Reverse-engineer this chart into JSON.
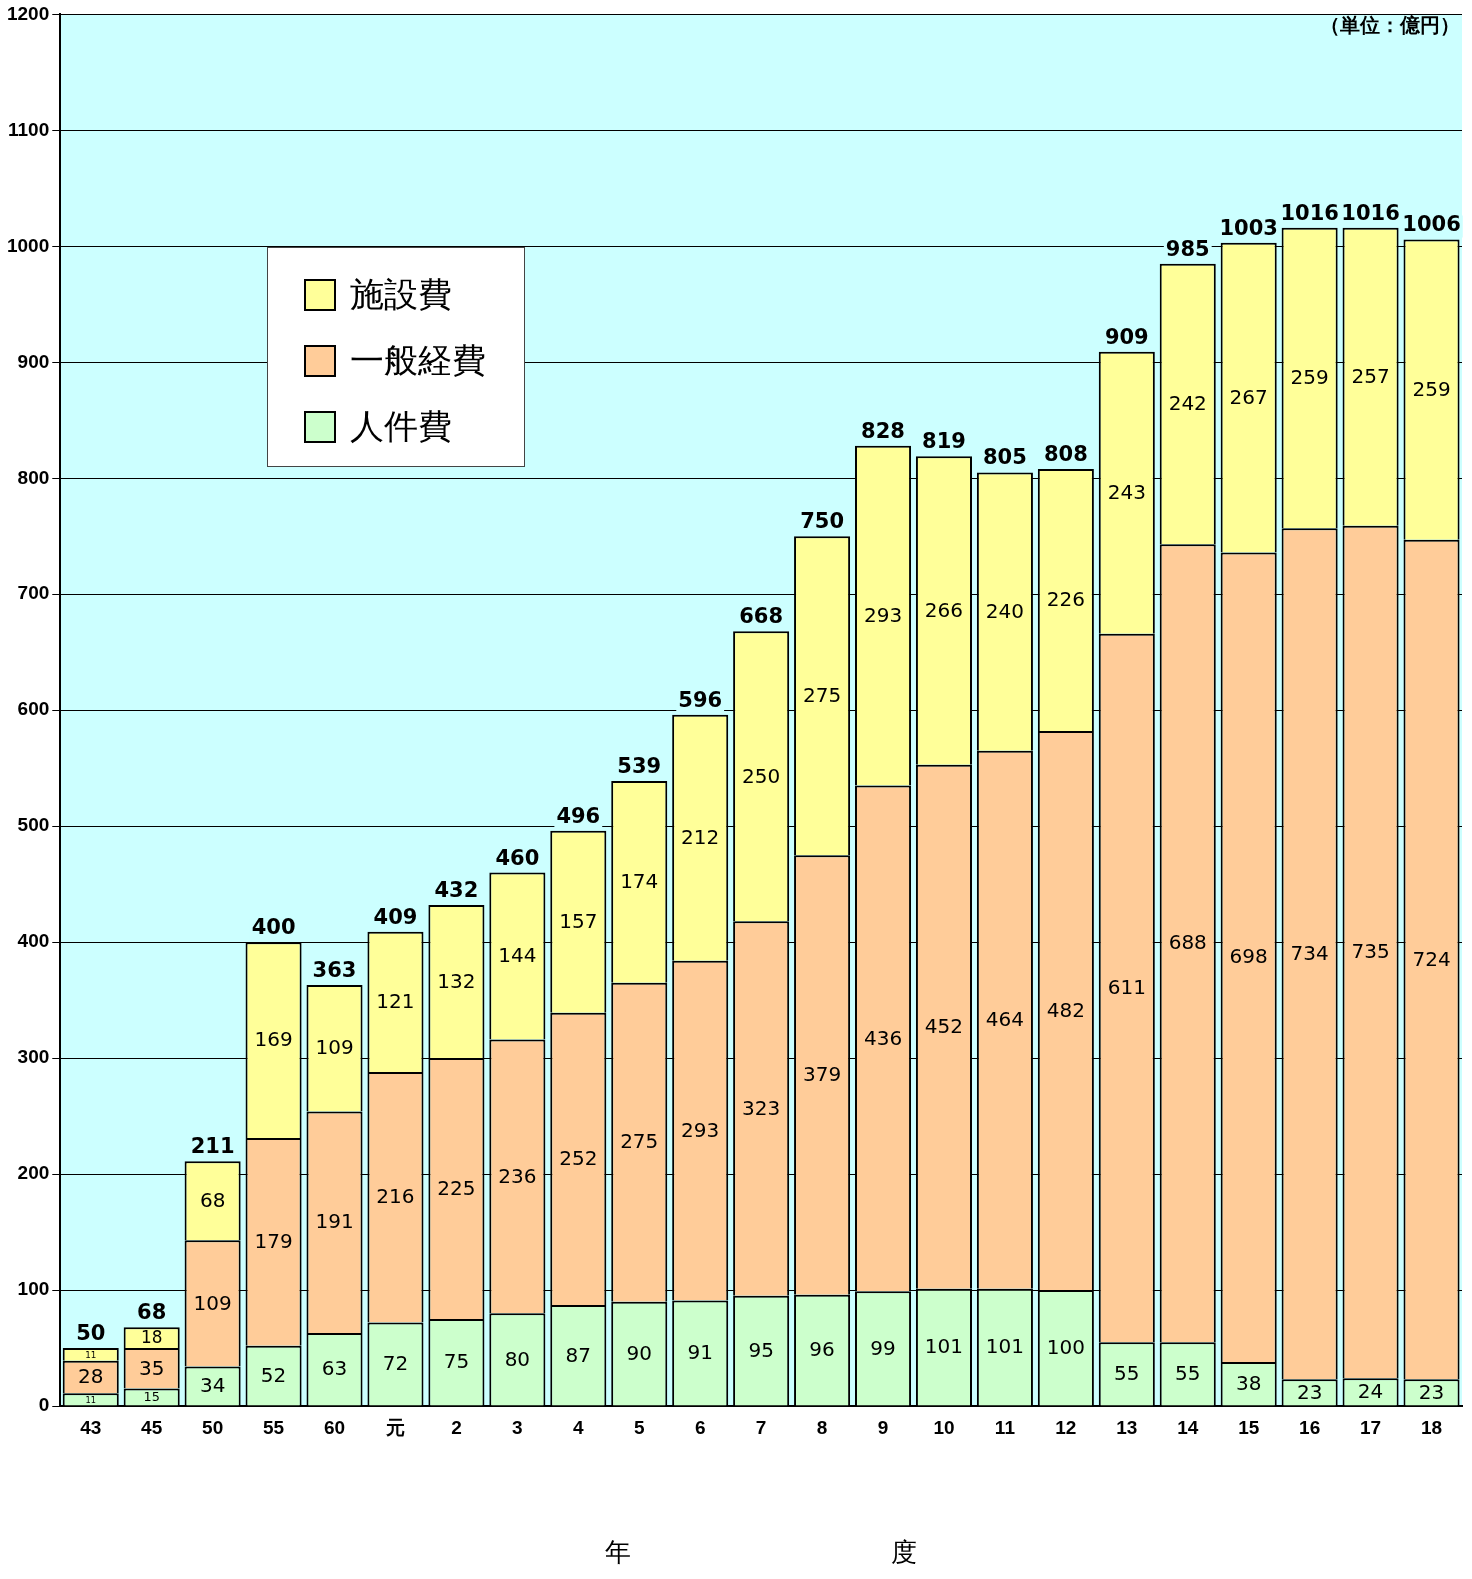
{
  "chart_data": {
    "type": "bar",
    "stacked": true,
    "xlabel": "年　　　　　　　　　　度",
    "annotations": [
      "（単位：億円）"
    ],
    "categories": [
      "43",
      "45",
      "50",
      "55",
      "60",
      "元",
      "2",
      "3",
      "4",
      "5",
      "6",
      "7",
      "8",
      "9",
      "10",
      "11",
      "12",
      "13",
      "14",
      "15",
      "16",
      "17",
      "18"
    ],
    "series": [
      {
        "name": "人件費",
        "color": "#ccffcc",
        "values": [
          11,
          15,
          34,
          52,
          63,
          72,
          75,
          80,
          87,
          90,
          91,
          95,
          96,
          99,
          101,
          101,
          100,
          55,
          55,
          38,
          23,
          24,
          23
        ]
      },
      {
        "name": "一般経費",
        "color": "#ffcc99",
        "values": [
          28,
          35,
          109,
          179,
          191,
          216,
          225,
          236,
          252,
          275,
          293,
          323,
          379,
          436,
          452,
          464,
          482,
          611,
          688,
          698,
          734,
          735,
          724
        ]
      },
      {
        "name": "施設費",
        "color": "#ffff99",
        "values": [
          11,
          18,
          68,
          169,
          109,
          121,
          132,
          144,
          157,
          174,
          212,
          250,
          275,
          293,
          266,
          240,
          226,
          243,
          242,
          267,
          259,
          257,
          259
        ]
      }
    ],
    "totals": [
      "50",
      "68",
      "211",
      "400",
      "363",
      "409",
      "432",
      "460",
      "496",
      "539",
      "596",
      "668",
      "750",
      "828",
      "819",
      "805",
      "808",
      "909",
      "985",
      "1003",
      "1016",
      "1016",
      "1006"
    ],
    "data_labels": true,
    "ylim": [
      0,
      1200
    ],
    "yticks": [
      0,
      100,
      200,
      300,
      400,
      500,
      600,
      700,
      800,
      900,
      1000,
      1100,
      1200
    ],
    "grid": "y",
    "legend": "top left"
  }
}
